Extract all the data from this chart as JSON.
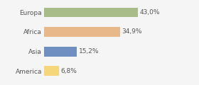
{
  "categories": [
    "Europa",
    "Africa",
    "Asia",
    "America"
  ],
  "values": [
    43.0,
    34.9,
    15.2,
    6.8
  ],
  "labels": [
    "43,0%",
    "34,9%",
    "15,2%",
    "6,8%"
  ],
  "bar_colors": [
    "#a8bc8a",
    "#e8b88a",
    "#6e8fc0",
    "#f5d67a"
  ],
  "background_color": "#f5f5f5",
  "xlim": [
    0,
    60
  ],
  "label_fontsize": 6.5,
  "tick_fontsize": 6.5,
  "bar_height": 0.5
}
